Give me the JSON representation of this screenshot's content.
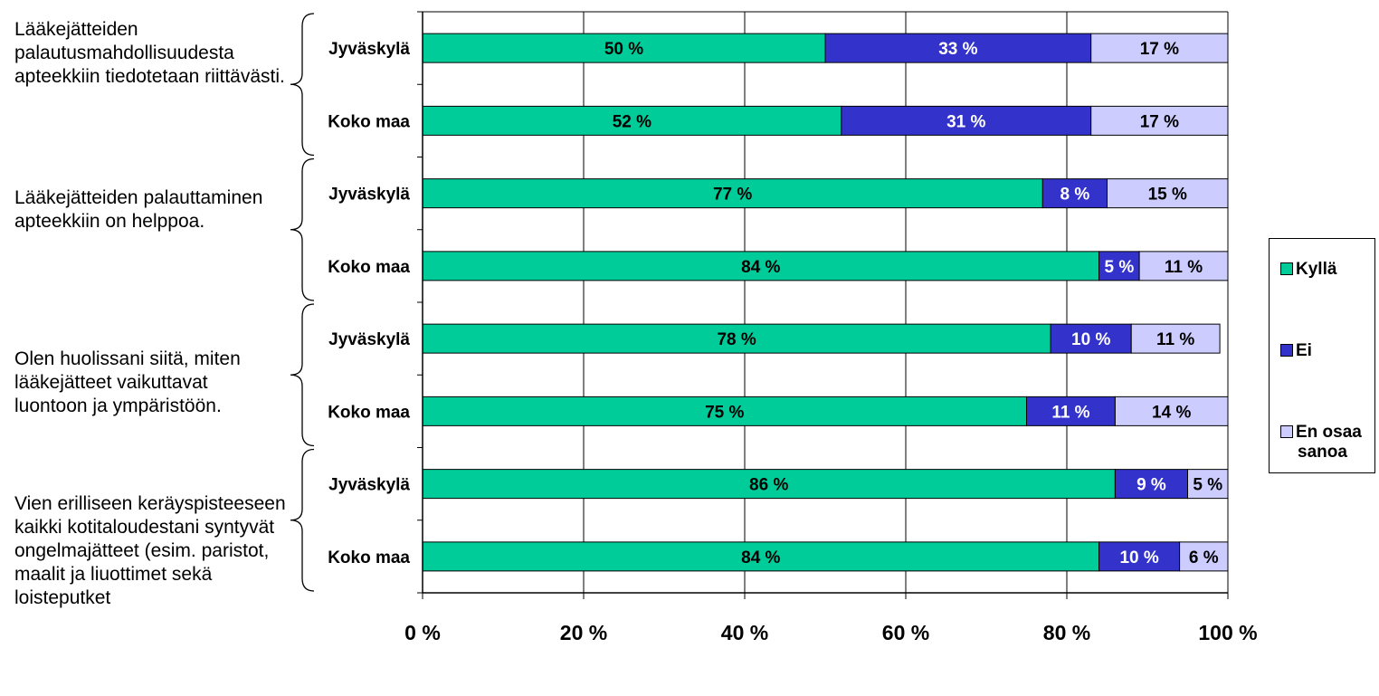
{
  "questions": [
    "Lääkejätteiden palautusmahdollisuudesta apteekkiin tiedotetaan riittävästi.",
    "Lääkejätteiden palauttaminen apteekkiin on helppoa.",
    "Olen huolissani siitä, miten lääkejätteet vaikuttavat luontoon ja ympäristöön.",
    "Vien erilliseen keräyspisteeseen kaikki kotitaloudestani syntyvät ongelmajätteet (esim. paristot, maalit ja liuottimet sekä loisteputket"
  ],
  "legend": {
    "kylla": "Kyllä",
    "ei": "Ei",
    "eos_line1": "En osaa",
    "eos_line2": "sanoa"
  },
  "colors": {
    "kylla": "#00CC99",
    "ei": "#3333CC",
    "eos": "#CCCCFF"
  },
  "chart_data": {
    "type": "bar",
    "orientation": "horizontal",
    "stacked": true,
    "categories": [
      "Jyväskylä",
      "Koko maa",
      "Jyväskylä",
      "Koko maa",
      "Jyväskylä",
      "Koko maa",
      "Jyväskylä",
      "Koko maa"
    ],
    "series": [
      {
        "name": "Kyllä",
        "values": [
          50,
          52,
          77,
          84,
          78,
          75,
          86,
          84
        ],
        "labels": [
          "50 %",
          "52 %",
          "77 %",
          "84 %",
          "78 %",
          "75 %",
          "86 %",
          "84 %"
        ]
      },
      {
        "name": "Ei",
        "values": [
          33,
          31,
          8,
          5,
          10,
          11,
          9,
          10
        ],
        "labels": [
          "33 %",
          "31 %",
          "8 %",
          "5 %",
          "10 %",
          "11 %",
          "9 %",
          "10 %"
        ]
      },
      {
        "name": "En osaa sanoa",
        "values": [
          17,
          17,
          15,
          11,
          11,
          14,
          5,
          6
        ],
        "labels": [
          "17 %",
          "17 %",
          "15 %",
          "11 %",
          "11 %",
          "14 %",
          "5 %",
          "6 %"
        ]
      }
    ],
    "xlim": [
      0,
      100
    ],
    "xticks": [
      "0 %",
      "20 %",
      "40 %",
      "60 %",
      "80 %",
      "100 %"
    ],
    "grid": true,
    "legend_position": "right"
  }
}
